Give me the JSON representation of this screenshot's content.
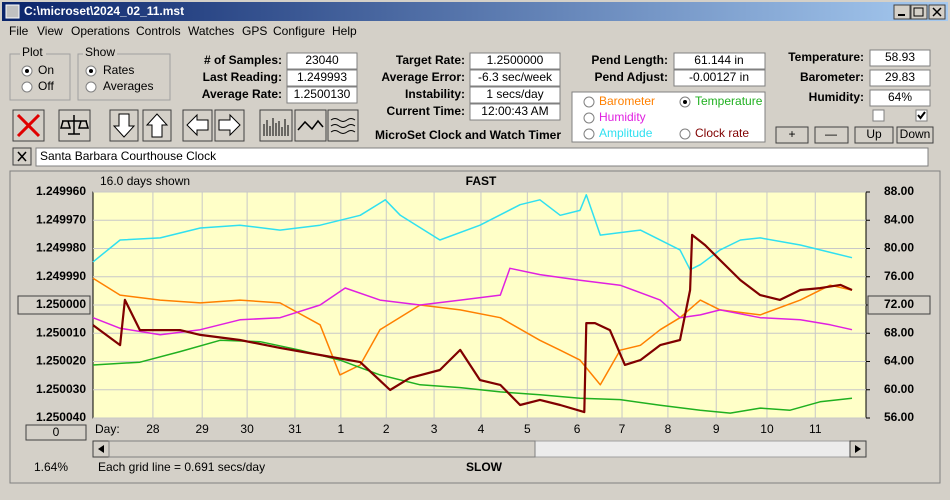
{
  "window": {
    "title": "C:\\microset\\2024_02_11.mst"
  },
  "menu": [
    "File",
    "View",
    "Operations",
    "Controls",
    "Watches",
    "GPS",
    "Configure",
    "Help"
  ],
  "plot": {
    "title": "Plot",
    "options": [
      {
        "label": "On",
        "checked": true
      },
      {
        "label": "Off",
        "checked": false
      }
    ]
  },
  "show": {
    "title": "Show",
    "options": [
      {
        "label": "Rates",
        "checked": true
      },
      {
        "label": "Averages",
        "checked": false
      }
    ]
  },
  "samples": [
    {
      "label": "# of Samples:",
      "value": "23040"
    },
    {
      "label": "Last Reading:",
      "value": "1.249993"
    },
    {
      "label": "Average Rate:",
      "value": "1.2500130"
    }
  ],
  "targets": [
    {
      "label": "Target Rate:",
      "value": "1.2500000"
    },
    {
      "label": "Average Error:",
      "value": "-6.3 sec/week"
    },
    {
      "label": "Instability:",
      "value": "1 secs/day"
    },
    {
      "label": "Current Time:",
      "value": "12:00:43 AM"
    }
  ],
  "app_name": "MicroSet Clock and Watch Timer",
  "pendulum": [
    {
      "label": "Pend Length:",
      "value": "61.144 in"
    },
    {
      "label": "Pend Adjust:",
      "value": "-0.00127 in"
    }
  ],
  "environment": [
    {
      "label": "Temperature:",
      "value": "58.93"
    },
    {
      "label": "Barometer:",
      "value": "29.83"
    },
    {
      "label": "Humidity:",
      "value": "64%"
    }
  ],
  "checkboxes": [
    {
      "checked": false
    },
    {
      "checked": true
    }
  ],
  "buttons": [
    "+",
    "—",
    "Up",
    "Down"
  ],
  "clock_name": "Santa Barbara Courthouse Clock",
  "chart_data": {
    "type": "line",
    "title": "FAST",
    "subtitle": "16.0 days shown",
    "bottom_title": "SLOW",
    "xlabel": "Day:",
    "note": "Each grid line = 0.691 secs/day",
    "percent": "1.64%",
    "offset": "0",
    "grid": true,
    "xlim": [
      0,
      16
    ],
    "xticks": [
      {
        "value": 1.24,
        "label": "28"
      },
      {
        "value": 2.26,
        "label": "29"
      },
      {
        "value": 3.19,
        "label": "30"
      },
      {
        "value": 4.18,
        "label": "31"
      },
      {
        "value": 5.13,
        "label": "1"
      },
      {
        "value": 6.07,
        "label": "2"
      },
      {
        "value": 7.06,
        "label": "3"
      },
      {
        "value": 8.03,
        "label": "4"
      },
      {
        "value": 8.99,
        "label": "5"
      },
      {
        "value": 10.02,
        "label": "6"
      },
      {
        "value": 10.95,
        "label": "7"
      },
      {
        "value": 11.9,
        "label": "8"
      },
      {
        "value": 12.9,
        "label": "9"
      },
      {
        "value": 13.95,
        "label": "10"
      },
      {
        "value": 14.95,
        "label": "11"
      }
    ],
    "ylim": [
      1.25004,
      1.24996
    ],
    "yticks": [
      {
        "value": 1.24996,
        "label": "1.249960"
      },
      {
        "value": 1.24997,
        "label": "1.249970"
      },
      {
        "value": 1.24998,
        "label": "1.249980"
      },
      {
        "value": 1.24999,
        "label": "1.249990"
      },
      {
        "value": 1.25,
        "label": "1.250000"
      },
      {
        "value": 1.25001,
        "label": "1.250010"
      },
      {
        "value": 1.25002,
        "label": "1.250020"
      },
      {
        "value": 1.25003,
        "label": "1.250030"
      },
      {
        "value": 1.25004,
        "label": "1.250040"
      }
    ],
    "y2lim": [
      56,
      88
    ],
    "y2ticks": [
      {
        "value": 88,
        "label": "88.00"
      },
      {
        "value": 84,
        "label": "84.00"
      },
      {
        "value": 80,
        "label": "80.00"
      },
      {
        "value": 76,
        "label": "76.00"
      },
      {
        "value": 72,
        "label": "72.00"
      },
      {
        "value": 68,
        "label": "68.00"
      },
      {
        "value": 64,
        "label": "64.00"
      },
      {
        "value": 60,
        "label": "60.00"
      },
      {
        "value": 56,
        "label": "56.00"
      }
    ],
    "series": [
      {
        "name": "Barometer",
        "color": "#ff8000",
        "axis": "y2",
        "checked": false,
        "x": [
          0,
          0.56,
          1.39,
          2.22,
          3.04,
          3.87,
          4.7,
          5.11,
          5.53,
          5.94,
          6.77,
          7.6,
          8.43,
          9.25,
          9.67,
          10.08,
          10.5,
          10.91,
          11.33,
          11.74,
          12.15,
          12.57,
          12.98,
          13.81,
          14.64,
          15.26,
          15.71
        ],
        "values": [
          75.8,
          73.4,
          72.7,
          72.3,
          72.7,
          72.3,
          69.2,
          62.1,
          63.5,
          68.5,
          72.0,
          71.3,
          70.2,
          67.0,
          65.6,
          64.2,
          60.7,
          65.6,
          66.3,
          68.5,
          70.2,
          72.7,
          71.3,
          70.6,
          72.7,
          74.8,
          74.1
        ]
      },
      {
        "name": "Humidity",
        "color": "#e020e0",
        "axis": "y2",
        "checked": false,
        "x": [
          0,
          0.56,
          1.39,
          2.22,
          3.04,
          3.87,
          4.7,
          5.22,
          5.94,
          6.77,
          7.6,
          8.43,
          8.63,
          9.25,
          10.08,
          10.91,
          11.74,
          12.15,
          12.57,
          12.98,
          13.81,
          14.64,
          15.26,
          15.71
        ],
        "values": [
          70.2,
          68.7,
          67.8,
          68.5,
          69.9,
          70.2,
          72.0,
          74.4,
          72.7,
          72.0,
          72.7,
          73.4,
          77.2,
          76.3,
          75.5,
          74.8,
          72.7,
          70.2,
          70.6,
          71.3,
          70.2,
          69.9,
          69.2,
          68.5
        ]
      },
      {
        "name": "Amplitude",
        "color": "#30e0f0",
        "axis": "y2",
        "checked": false,
        "x": [
          0,
          0.56,
          1.39,
          2.22,
          3.04,
          3.87,
          4.7,
          5.53,
          6.05,
          6.36,
          7.18,
          8.01,
          8.84,
          9.25,
          9.67,
          10.08,
          10.21,
          10.5,
          11.33,
          12.15,
          12.36,
          12.57,
          12.98,
          13.4,
          13.81,
          14.64,
          15.05,
          15.71
        ],
        "values": [
          78.1,
          81.2,
          81.5,
          82.9,
          83.3,
          82.6,
          83.3,
          84.7,
          86.9,
          84.7,
          81.2,
          83.3,
          86.2,
          86.9,
          84.7,
          85.4,
          87.6,
          81.9,
          82.6,
          79.8,
          77.0,
          77.7,
          79.8,
          81.2,
          81.5,
          80.5,
          79.8,
          78.7
        ]
      },
      {
        "name": "Temperature",
        "color": "#20b020",
        "axis": "y2",
        "checked": true,
        "x": [
          0,
          0.97,
          1.8,
          2.63,
          3.46,
          4.29,
          5.11,
          5.94,
          6.77,
          7.6,
          8.43,
          9.25,
          10.08,
          10.91,
          11.74,
          12.57,
          13.19,
          13.81,
          14.43,
          15.05,
          15.71
        ],
        "values": [
          63.5,
          63.9,
          65.4,
          67.0,
          66.8,
          65.6,
          64.2,
          62.1,
          60.7,
          60.3,
          59.7,
          59.3,
          58.8,
          58.6,
          57.8,
          57.1,
          56.7,
          57.4,
          57.1,
          58.3,
          58.8
        ]
      },
      {
        "name": "Clock rate",
        "color": "#800000",
        "checked": false,
        "x": [
          0,
          0.56,
          0.66,
          0.97,
          1.8,
          2.22,
          3.04,
          3.87,
          4.7,
          5.53,
          6.15,
          6.56,
          7.18,
          7.6,
          8.01,
          8.43,
          8.84,
          9.25,
          9.67,
          10.17,
          10.21,
          10.39,
          10.7,
          11.01,
          11.33,
          11.74,
          12.15,
          12.36,
          12.4,
          12.67,
          12.98,
          13.4,
          13.81,
          14.22,
          14.64,
          15.05,
          15.47,
          15.71
        ],
        "values": [
          1.2500071,
          1.2500142,
          1.2499982,
          1.2500089,
          1.2500089,
          1.2500106,
          1.2500124,
          1.2500152,
          1.2500177,
          1.2500202,
          1.2500301,
          1.2500258,
          1.250023,
          1.2500159,
          1.2500266,
          1.2500283,
          1.2500354,
          1.2500336,
          1.2500354,
          1.2500379,
          1.2500064,
          1.2500064,
          1.2500089,
          1.2500212,
          1.2500195,
          1.2500142,
          1.2500124,
          1.2499947,
          1.2499752,
          1.2499788,
          1.2499841,
          1.2499912,
          1.2499965,
          1.2499982,
          1.2499947,
          1.249994,
          1.2499929,
          1.2499947
        ]
      }
    ]
  }
}
